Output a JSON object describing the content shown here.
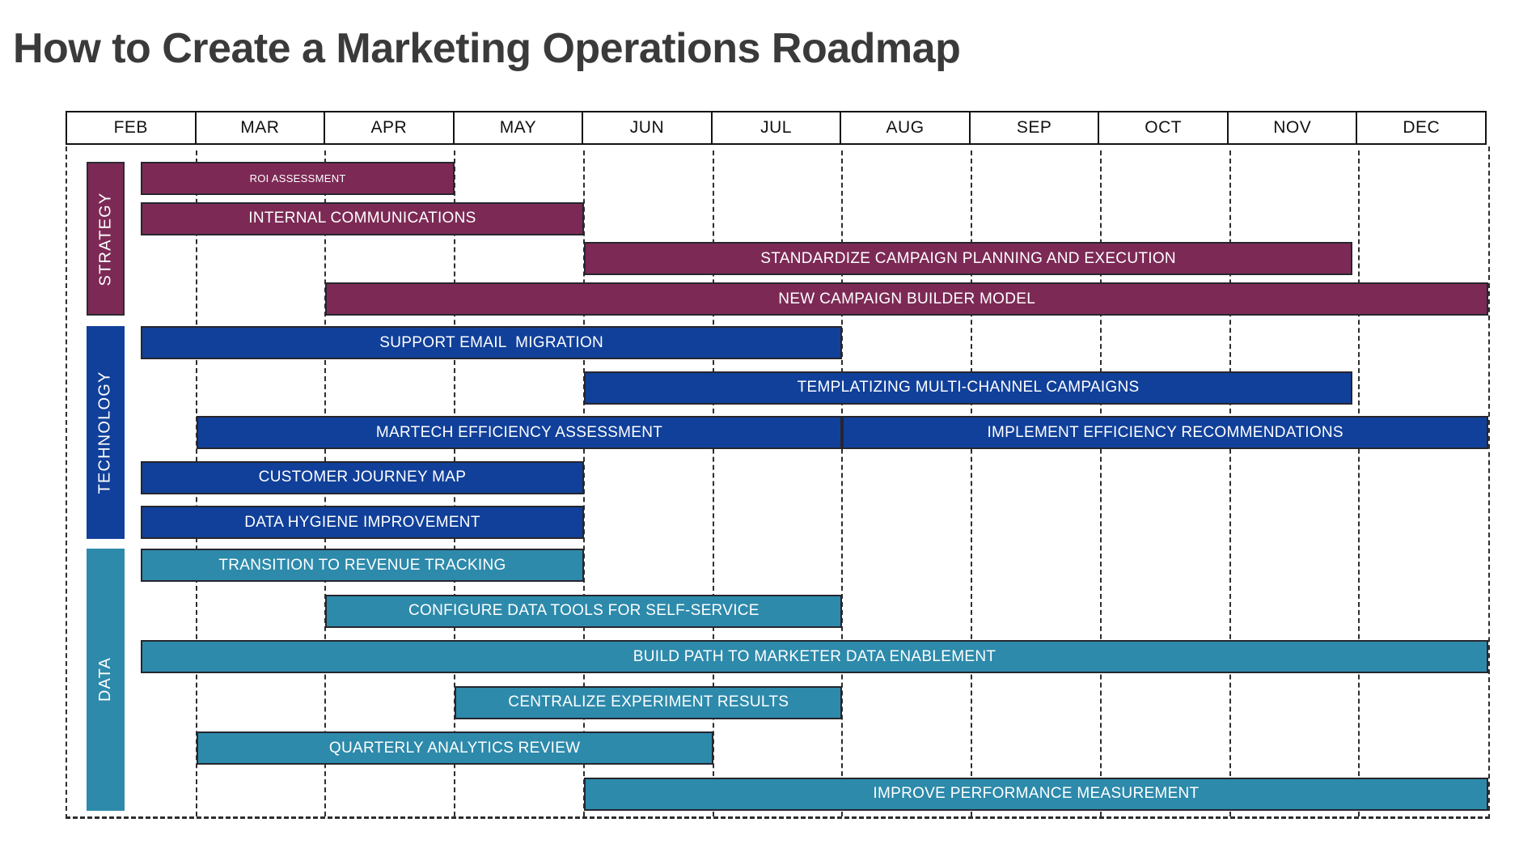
{
  "title": "How to Create a Marketing Operations Roadmap",
  "months": [
    "FEB",
    "MAR",
    "APR",
    "MAY",
    "JUN",
    "JUL",
    "AUG",
    "SEP",
    "OCT",
    "NOV",
    "DEC"
  ],
  "colors": {
    "strategy": "#7c2a55",
    "technology": "#11409a",
    "data": "#2d8aab",
    "bar_border": "#26262e",
    "grid_line": "#2e2e2e",
    "header_border": "#131313",
    "header_text": "#111111",
    "title_text": "#3a3a3a",
    "bar_text": "#ffffff",
    "background": "#ffffff"
  },
  "chart_data": {
    "type": "bar",
    "subtype": "gantt",
    "title": "How to Create a Marketing Operations Roadmap",
    "x_axis": {
      "categories": [
        "FEB",
        "MAR",
        "APR",
        "MAY",
        "JUN",
        "JUL",
        "AUG",
        "SEP",
        "OCT",
        "NOV",
        "DEC"
      ],
      "unit": "month",
      "range_note": "task start/end measured in month units where 0 = start of FEB and 11 = end of DEC"
    },
    "grid": "dashed vertical lines at each month boundary",
    "legend_position": "none",
    "sections": [
      {
        "name": "STRATEGY",
        "color": "#7c2a55",
        "tasks": [
          {
            "label": "ROI ASSESSMENT",
            "row": 0,
            "start": 0.57,
            "end": 3,
            "text_size": "small"
          },
          {
            "label": "INTERNAL COMMUNICATIONS",
            "row": 1,
            "start": 0.57,
            "end": 4
          },
          {
            "label": "STANDARDIZE CAMPAIGN PLANNING AND EXECUTION",
            "row": 2,
            "start": 4,
            "end": 9.95
          },
          {
            "label": "NEW CAMPAIGN BUILDER MODEL",
            "row": 3,
            "start": 2,
            "end": 11
          }
        ]
      },
      {
        "name": "TECHNOLOGY",
        "color": "#11409a",
        "tasks": [
          {
            "label": "SUPPORT EMAIL  MIGRATION",
            "row": 0,
            "start": 0.57,
            "end": 6
          },
          {
            "label": "TEMPLATIZING MULTI-CHANNEL CAMPAIGNS",
            "row": 1,
            "start": 4,
            "end": 9.95
          },
          {
            "label": "MARTECH EFFICIENCY ASSESSMENT",
            "row": 2,
            "start": 1,
            "end": 6
          },
          {
            "label": "IMPLEMENT EFFICIENCY RECOMMENDATIONS",
            "row": 2,
            "start": 6,
            "end": 11
          },
          {
            "label": "CUSTOMER JOURNEY MAP",
            "row": 3,
            "start": 0.57,
            "end": 4
          },
          {
            "label": "DATA HYGIENE IMPROVEMENT",
            "row": 4,
            "start": 0.57,
            "end": 4
          }
        ]
      },
      {
        "name": "DATA",
        "color": "#2d8aab",
        "tasks": [
          {
            "label": "TRANSITION TO REVENUE TRACKING",
            "row": 0,
            "start": 0.57,
            "end": 4
          },
          {
            "label": "CONFIGURE DATA TOOLS FOR SELF-SERVICE",
            "row": 1,
            "start": 2,
            "end": 6
          },
          {
            "label": "BUILD PATH TO MARKETER DATA ENABLEMENT",
            "row": 2,
            "start": 0.57,
            "end": 11
          },
          {
            "label": "CENTRALIZE EXPERIMENT RESULTS",
            "row": 3,
            "start": 3,
            "end": 6
          },
          {
            "label": "QUARTERLY ANALYTICS REVIEW",
            "row": 4,
            "start": 1,
            "end": 5
          },
          {
            "label": "IMPROVE PERFORMANCE MEASUREMENT",
            "row": 5,
            "start": 4,
            "end": 11
          }
        ]
      }
    ]
  }
}
